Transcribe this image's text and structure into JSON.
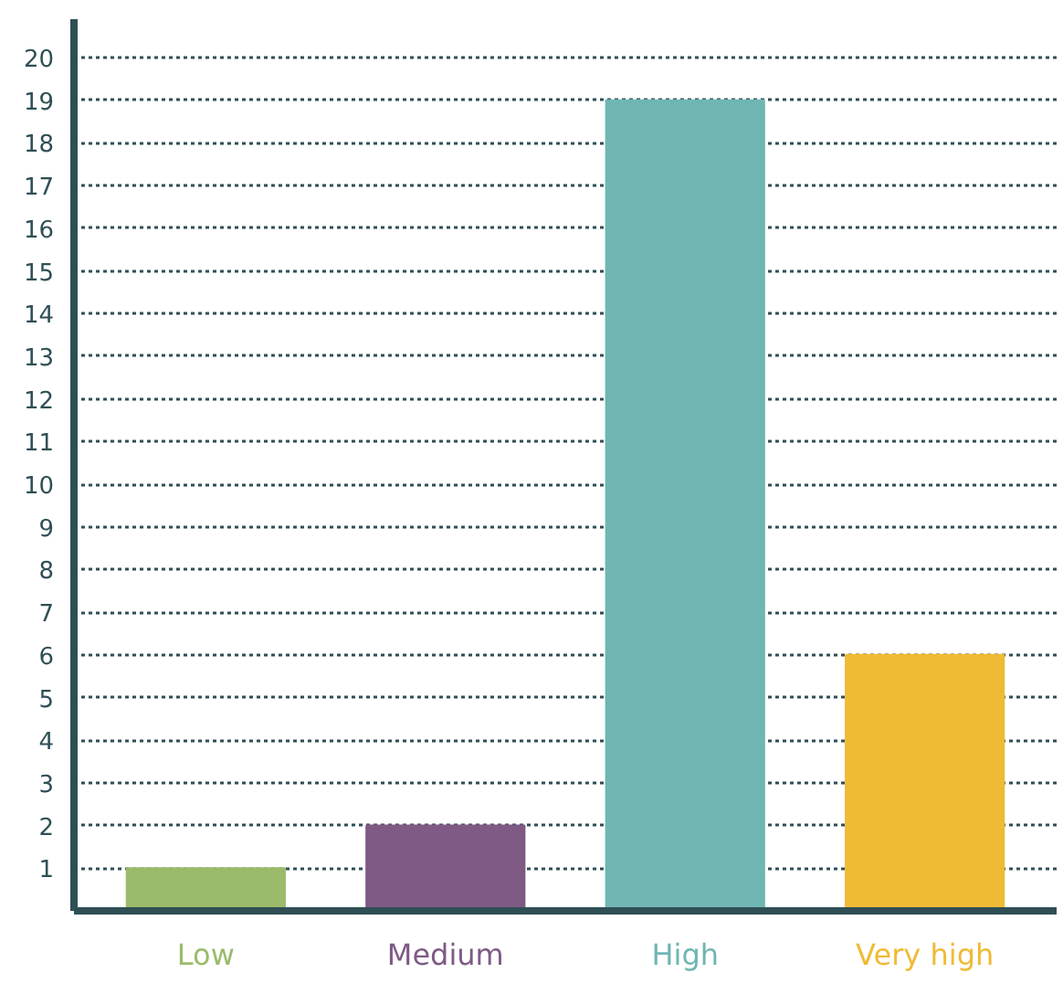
{
  "chart_data": {
    "type": "bar",
    "categories": [
      "Low",
      "Medium",
      "High",
      "Very high"
    ],
    "values": [
      1,
      2,
      19,
      6
    ],
    "colors": [
      "#9bbb6b",
      "#7e5a85",
      "#6fb6b2",
      "#efbb35"
    ],
    "ylim": [
      0,
      20.9
    ],
    "yticks": [
      1,
      2,
      3,
      4,
      5,
      6,
      7,
      8,
      9,
      10,
      11,
      12,
      13,
      14,
      15,
      16,
      17,
      18,
      19,
      20
    ],
    "grid": "y"
  }
}
